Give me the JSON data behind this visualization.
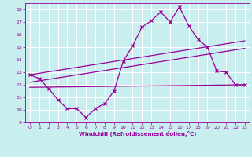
{
  "xlabel": "Windchill (Refroidissement éolien,°C)",
  "bg_color": "#c8eef0",
  "grid_color": "#ffffff",
  "line_color": "#990099",
  "xlim": [
    -0.5,
    23.5
  ],
  "ylim": [
    9,
    18.5
  ],
  "yticks": [
    9,
    10,
    11,
    12,
    13,
    14,
    15,
    16,
    17,
    18
  ],
  "xticks": [
    0,
    1,
    2,
    3,
    4,
    5,
    6,
    7,
    8,
    9,
    10,
    11,
    12,
    13,
    14,
    15,
    16,
    17,
    18,
    19,
    20,
    21,
    22,
    23
  ],
  "series1_x": [
    0,
    1,
    2,
    3,
    4,
    5,
    6,
    7,
    8,
    9,
    10,
    11,
    12,
    13,
    14,
    15,
    16,
    17,
    18,
    19,
    20,
    21,
    22,
    23
  ],
  "series1_y": [
    12.8,
    12.5,
    11.7,
    10.8,
    10.1,
    10.1,
    9.4,
    10.1,
    10.5,
    11.5,
    13.9,
    15.1,
    16.6,
    17.1,
    17.8,
    17.0,
    18.2,
    16.7,
    15.6,
    15.0,
    13.1,
    13.0,
    12.0,
    12.0
  ],
  "series2_x": [
    0,
    23
  ],
  "series2_y": [
    12.8,
    15.5
  ],
  "series3_x": [
    0,
    23
  ],
  "series3_y": [
    12.2,
    14.9
  ],
  "series4_x": [
    0,
    23
  ],
  "series4_y": [
    11.8,
    12.0
  ]
}
